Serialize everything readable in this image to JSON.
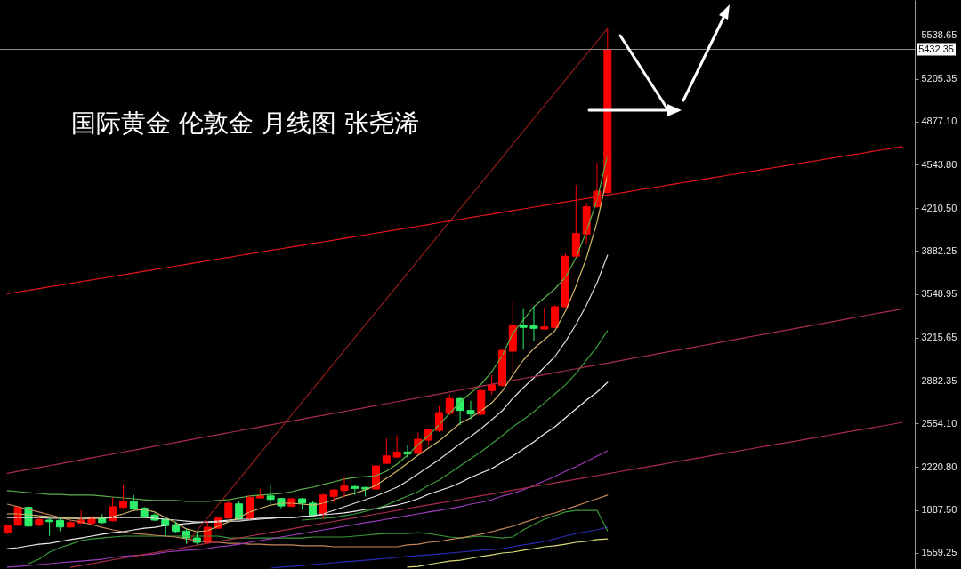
{
  "chart_data": {
    "type": "candlestick",
    "title": "国际黄金 伦敦金 月线图 张尧浠",
    "categories": [
      null,
      null,
      null,
      null,
      null,
      null,
      null,
      null,
      null,
      null,
      null,
      null,
      null,
      null,
      null,
      null,
      null,
      null,
      null,
      null,
      null,
      null,
      null,
      null,
      null,
      null,
      null,
      null,
      null,
      null,
      null,
      null,
      null,
      null,
      null,
      null,
      null,
      null,
      null,
      null,
      null,
      null,
      null,
      null,
      null,
      null,
      null,
      null,
      null,
      null,
      null,
      null,
      null,
      null,
      null,
      null,
      null,
      null,
      null,
      null,
      null,
      null,
      null,
      null,
      null,
      null,
      null,
      null,
      null,
      null,
      null,
      null,
      null,
      null,
      null,
      null,
      null,
      null,
      null,
      null,
      null,
      null,
      null,
      null,
      null,
      null
    ],
    "ohlc": [
      [
        1714,
        1780,
        1705,
        1773
      ],
      [
        1773,
        1919,
        1766,
        1910
      ],
      [
        1910,
        1919,
        1759,
        1766
      ],
      [
        1773,
        1835,
        1766,
        1817
      ],
      [
        1812,
        1835,
        1691,
        1800
      ],
      [
        1810,
        1835,
        1728,
        1759
      ],
      [
        1759,
        1805,
        1754,
        1793
      ],
      [
        1789,
        1887,
        1783,
        1812
      ],
      [
        1789,
        1846,
        1778,
        1828
      ],
      [
        1828,
        1858,
        1783,
        1793
      ],
      [
        1807,
        1987,
        1800,
        1915
      ],
      [
        1910,
        2085,
        1903,
        1954
      ],
      [
        1954,
        2005,
        1890,
        1896
      ],
      [
        1903,
        1915,
        1828,
        1841
      ],
      [
        1851,
        1865,
        1805,
        1812
      ],
      [
        1819,
        1835,
        1691,
        1771
      ],
      [
        1773,
        1800,
        1709,
        1725
      ],
      [
        1728,
        1744,
        1630,
        1675
      ],
      [
        1675,
        1728,
        1623,
        1641
      ],
      [
        1641,
        1805,
        1630,
        1757
      ],
      [
        1750,
        1835,
        1744,
        1828
      ],
      [
        1828,
        1956,
        1822,
        1942
      ],
      [
        1937,
        1960,
        1812,
        1823
      ],
      [
        1823,
        2005,
        1819,
        1988
      ],
      [
        1983,
        2051,
        1978,
        2001
      ],
      [
        1998,
        2085,
        1937,
        1971
      ],
      [
        1978,
        1983,
        1903,
        1921
      ],
      [
        1919,
        1983,
        1911,
        1976
      ],
      [
        1976,
        1983,
        1892,
        1942
      ],
      [
        1942,
        1956,
        1846,
        1851
      ],
      [
        1857,
        2017,
        1823,
        2005
      ],
      [
        1994,
        2051,
        1949,
        2044
      ],
      [
        2040,
        2142,
        1990,
        2074
      ],
      [
        2070,
        2079,
        2005,
        2056
      ],
      [
        2063,
        2070,
        1994,
        2051
      ],
      [
        2051,
        2234,
        2040,
        2229
      ],
      [
        2249,
        2439,
        2243,
        2306
      ],
      [
        2297,
        2466,
        2291,
        2336
      ],
      [
        2336,
        2393,
        2291,
        2320
      ],
      [
        2325,
        2484,
        2320,
        2434
      ],
      [
        2427,
        2518,
        2393,
        2507
      ],
      [
        2502,
        2689,
        2489,
        2639
      ],
      [
        2633,
        2781,
        2621,
        2747
      ],
      [
        2747,
        2762,
        2542,
        2655
      ],
      [
        2655,
        2730,
        2587,
        2628
      ],
      [
        2626,
        2815,
        2621,
        2808
      ],
      [
        2808,
        2929,
        2776,
        2853
      ],
      [
        2849,
        3127,
        2838,
        3118
      ],
      [
        3111,
        3499,
        2940,
        3310
      ],
      [
        3312,
        3441,
        3123,
        3294
      ],
      [
        3305,
        3453,
        3191,
        3287
      ],
      [
        3282,
        3446,
        3277,
        3298
      ],
      [
        3294,
        3465,
        3289,
        3453
      ],
      [
        3453,
        3863,
        3446,
        3841
      ],
      [
        3841,
        4388,
        3834,
        4016
      ],
      [
        4012,
        4251,
        3932,
        4221
      ],
      [
        4221,
        4559,
        4217,
        4342
      ],
      [
        4330,
        5595,
        4320,
        5432.35
      ],
      null,
      null,
      null,
      null,
      null,
      null,
      null,
      null,
      null,
      null,
      null,
      null,
      null,
      null,
      null,
      null,
      null,
      null,
      null,
      null,
      null,
      null,
      null,
      null,
      null,
      null,
      null,
      null
    ],
    "colors": [
      "#ff0000",
      "#ff0000",
      "#2ef06a",
      "#ff0000",
      "#2ef06a",
      "#2ef06a",
      "#ff0000",
      "#ff0000",
      "#ff0000",
      "#2ef06a",
      "#ff0000",
      "#ff0000",
      "#2ef06a",
      "#2ef06a",
      "#2ef06a",
      "#2ef06a",
      "#2ef06a",
      "#2ef06a",
      "#2ef06a",
      "#ff0000",
      "#ff0000",
      "#ff0000",
      "#2ef06a",
      "#ff0000",
      "#ff0000",
      "#2ef06a",
      "#2ef06a",
      "#ff0000",
      "#2ef06a",
      "#2ef06a",
      "#ff0000",
      "#ff0000",
      "#ff0000",
      "#2ef06a",
      "#2ef06a",
      "#ff0000",
      "#ff0000",
      "#ff0000",
      "#2ef06a",
      "#ff0000",
      "#ff0000",
      "#ff0000",
      "#ff0000",
      "#2ef06a",
      "#2ef06a",
      "#ff0000",
      "#ff0000",
      "#ff0000",
      "#ff0000",
      "#2ef06a",
      "#2ef06a",
      "#ff0000",
      "#ff0000",
      "#ff0000",
      "#ff0000",
      "#ff0000",
      "#ff0000",
      "#ff0000",
      null,
      null,
      null,
      null,
      null,
      null,
      null,
      null,
      null,
      null,
      null,
      null,
      null,
      null,
      null,
      null,
      null,
      null,
      null,
      null,
      null,
      null,
      null,
      null,
      null,
      null,
      null,
      null
    ],
    "series": [
      {
        "type": "line",
        "color": "#2a2ab0",
        "values": [
          null,
          null,
          null,
          null,
          null,
          null,
          null,
          null,
          null,
          null,
          null,
          null,
          null,
          null,
          null,
          null,
          null,
          null,
          null,
          null,
          null,
          null,
          null,
          null,
          null,
          1443,
          1450,
          1456,
          1463,
          1470,
          1477,
          1484,
          1491,
          1497,
          1504,
          1511,
          1518,
          1525,
          1532,
          1539,
          1545,
          1552,
          1559,
          1566,
          1573,
          1580,
          1586,
          1593,
          1607,
          1621,
          1634,
          1648,
          1668,
          1689,
          1709,
          1723,
          1737,
          1757,
          null,
          null,
          null,
          null,
          null,
          null,
          null,
          null,
          null,
          null,
          null,
          null,
          null,
          null,
          null,
          null,
          null,
          null,
          null,
          null,
          null,
          null,
          null,
          null,
          null,
          null,
          null,
          null
        ]
      },
      {
        "type": "line",
        "color": "#dcdc78",
        "values": [
          null,
          null,
          null,
          null,
          null,
          null,
          null,
          null,
          null,
          null,
          null,
          null,
          null,
          null,
          null,
          null,
          null,
          null,
          null,
          null,
          null,
          null,
          null,
          null,
          null,
          null,
          null,
          null,
          null,
          null,
          null,
          null,
          null,
          null,
          null,
          null,
          null,
          null,
          1450,
          1456,
          1470,
          1484,
          1497,
          1504,
          1518,
          1532,
          1545,
          1559,
          1566,
          1580,
          1593,
          1607,
          1614,
          1627,
          1641,
          1648,
          1662,
          1668,
          null,
          null,
          null,
          null,
          null,
          null,
          null,
          null,
          null,
          null,
          null,
          null,
          null,
          null,
          null,
          null,
          null,
          null,
          null,
          null,
          null,
          null,
          null,
          null,
          null,
          null,
          null,
          null
        ]
      },
      {
        "type": "line",
        "color": "#3a9a3a",
        "values": [
          null,
          null,
          1477,
          1511,
          1566,
          1600,
          1627,
          1655,
          1668,
          1675,
          1682,
          1689,
          1689,
          1689,
          1689,
          1689,
          1689,
          1689,
          1689,
          1689,
          1689,
          1675,
          1675,
          1675,
          1675,
          1675,
          1675,
          1675,
          1675,
          1682,
          1682,
          1682,
          1682,
          1689,
          1696,
          1703,
          1709,
          1709,
          1709,
          1716,
          1709,
          1696,
          1682,
          1675,
          1682,
          1689,
          1682,
          1675,
          1682,
          1737,
          1778,
          1819,
          1846,
          1874,
          1887,
          1887,
          1887,
          1730,
          null,
          null,
          null,
          null,
          null,
          null,
          null,
          null,
          null,
          null,
          null,
          null,
          null,
          null,
          null,
          null,
          null,
          null,
          null,
          null,
          null,
          null,
          null,
          null,
          null,
          null,
          null,
          null
        ]
      },
      {
        "type": "line",
        "color": "#c4875a",
        "values": [
          1935,
          1915,
          1894,
          1874,
          1853,
          1832,
          1812,
          1798,
          1778,
          1757,
          1737,
          1723,
          1709,
          1703,
          1696,
          1689,
          1682,
          1668,
          1655,
          1641,
          1641,
          1634,
          1634,
          1627,
          1627,
          1621,
          1621,
          1621,
          1614,
          1614,
          1614,
          1607,
          1607,
          1607,
          1607,
          1607,
          1607,
          1607,
          1621,
          1627,
          1641,
          1648,
          1662,
          1675,
          1689,
          1703,
          1723,
          1744,
          1764,
          1792,
          1819,
          1846,
          1867,
          1894,
          1921,
          1949,
          1976,
          2004,
          null,
          null,
          null,
          null,
          null,
          null,
          null,
          null,
          null,
          null,
          null,
          null,
          null,
          null,
          null,
          null,
          null,
          null,
          null,
          null,
          null,
          null,
          null,
          null,
          null,
          null,
          null,
          null
        ]
      },
      {
        "type": "line",
        "color": "#9c3cbc",
        "values": [
          1450,
          1456,
          1463,
          1470,
          1477,
          1484,
          1491,
          1497,
          1504,
          1511,
          1525,
          1532,
          1539,
          1545,
          1552,
          1566,
          1573,
          1580,
          1586,
          1593,
          1607,
          1614,
          1627,
          1641,
          1655,
          1668,
          1682,
          1696,
          1709,
          1723,
          1737,
          1750,
          1764,
          1778,
          1792,
          1805,
          1819,
          1832,
          1846,
          1860,
          1874,
          1887,
          1901,
          1915,
          1935,
          1949,
          1969,
          1997,
          2017,
          2045,
          2079,
          2113,
          2147,
          2188,
          2222,
          2263,
          2304,
          2345,
          null,
          null,
          null,
          null,
          null,
          null,
          null,
          null,
          null,
          null,
          null,
          null,
          null,
          null,
          null,
          null,
          null,
          null,
          null,
          null,
          null,
          null,
          null,
          null,
          null,
          null,
          null,
          null
        ]
      },
      {
        "type": "line",
        "color": "#f0f0f0",
        "values": [
          1593,
          1600,
          1614,
          1627,
          1634,
          1648,
          1662,
          1675,
          1689,
          1703,
          1716,
          1723,
          1737,
          1750,
          1757,
          1771,
          1778,
          1785,
          1792,
          1798,
          1805,
          1812,
          1819,
          1819,
          1826,
          1826,
          1832,
          1832,
          1839,
          1846,
          1853,
          1860,
          1867,
          1880,
          1894,
          1901,
          1915,
          1928,
          1949,
          1976,
          2010,
          2038,
          2065,
          2099,
          2140,
          2174,
          2209,
          2256,
          2304,
          2359,
          2414,
          2475,
          2530,
          2598,
          2667,
          2735,
          2797,
          2872,
          null,
          null,
          null,
          null,
          null,
          null,
          null,
          null,
          null,
          null,
          null,
          null,
          null,
          null,
          null,
          null,
          null,
          null,
          null,
          null,
          null,
          null,
          null,
          null,
          null,
          null,
          null,
          null
        ]
      },
      {
        "type": "line",
        "color": "#3c9c3c",
        "values": [
          null,
          null,
          null,
          null,
          null,
          null,
          null,
          null,
          null,
          null,
          null,
          null,
          null,
          null,
          null,
          null,
          null,
          null,
          null,
          null,
          null,
          null,
          null,
          null,
          null,
          null,
          null,
          null,
          1812,
          1819,
          1826,
          1832,
          1846,
          1860,
          1880,
          1901,
          1928,
          1963,
          1997,
          2031,
          2079,
          2120,
          2174,
          2229,
          2284,
          2338,
          2400,
          2462,
          2530,
          2585,
          2646,
          2714,
          2783,
          2852,
          2940,
          3043,
          3146,
          3269,
          null,
          null,
          null,
          null,
          null,
          null,
          null,
          null,
          null,
          null,
          null,
          null,
          null,
          null,
          null,
          null,
          null,
          null,
          null,
          null,
          null,
          null,
          null,
          null,
          null,
          null,
          null,
          null
        ]
      },
      {
        "type": "line",
        "color": "#dcdcdc",
        "values": [
          1832,
          1832,
          1832,
          1832,
          1826,
          1826,
          1826,
          1826,
          1826,
          1826,
          1832,
          1832,
          1832,
          1832,
          1826,
          1819,
          1812,
          1805,
          1798,
          1798,
          1798,
          1805,
          1805,
          1812,
          1819,
          1826,
          1832,
          1832,
          1839,
          1846,
          1860,
          1887,
          1915,
          1942,
          1969,
          1997,
          2031,
          2065,
          2113,
          2168,
          2222,
          2277,
          2338,
          2400,
          2455,
          2516,
          2585,
          2653,
          2749,
          2831,
          2906,
          2988,
          3070,
          3186,
          3316,
          3467,
          3638,
          3850,
          null,
          null,
          null,
          null,
          null,
          null,
          null,
          null,
          null,
          null,
          null,
          null,
          null,
          null,
          null,
          null,
          null,
          null,
          null,
          null,
          null,
          null,
          null,
          null,
          null,
          null,
          null,
          null
        ]
      },
      {
        "type": "line",
        "color": "#d2b86a",
        "values": [
          1860,
          1860,
          1853,
          1846,
          1839,
          1832,
          1826,
          1819,
          1826,
          1832,
          1839,
          1860,
          1887,
          1894,
          1874,
          1832,
          1792,
          1744,
          1723,
          1730,
          1764,
          1798,
          1832,
          1874,
          1901,
          1928,
          1942,
          1942,
          1935,
          1928,
          1942,
          1969,
          1997,
          2017,
          2045,
          2079,
          2134,
          2188,
          2250,
          2311,
          2366,
          2421,
          2489,
          2557,
          2598,
          2653,
          2714,
          2804,
          2927,
          3043,
          3132,
          3200,
          3269,
          3419,
          3610,
          3829,
          4103,
          4465,
          null,
          null,
          null,
          null,
          null,
          null,
          null,
          null,
          null,
          null,
          null,
          null,
          null,
          null,
          null,
          null,
          null,
          null,
          null,
          null,
          null,
          null,
          null,
          null,
          null,
          null,
          null,
          null
        ]
      },
      {
        "type": "line",
        "color": "#5cb04c",
        "values": [
          2038,
          2031,
          2024,
          2017,
          2010,
          2010,
          2004,
          2004,
          2004,
          1997,
          1990,
          1983,
          1976,
          1969,
          1963,
          1963,
          1963,
          1956,
          1956,
          1956,
          1963,
          1969,
          1983,
          1997,
          2004,
          2010,
          2017,
          2031,
          2051,
          2065,
          2086,
          2106,
          2127,
          2140,
          2147,
          2154,
          2188,
          2243,
          2311,
          2393,
          2462,
          2544,
          2633,
          2721,
          2790,
          2858,
          2954,
          3077,
          3248,
          3351,
          3453,
          3521,
          3590,
          3679,
          3829,
          4034,
          4274,
          4616,
          null,
          null,
          null,
          null,
          null,
          null,
          null,
          null,
          null,
          null,
          null,
          null,
          null,
          null,
          null,
          null,
          null,
          null,
          null,
          null,
          null,
          null,
          null,
          null,
          null,
          null,
          null,
          null
        ]
      },
      {
        "type": "line",
        "color": "#8e1c1c",
        "values": [
          null,
          null,
          null,
          null,
          null,
          null,
          null,
          null,
          null,
          null,
          null,
          null,
          null,
          null,
          null,
          null,
          null,
          1630,
          1729,
          1828,
          1927,
          2026,
          2125,
          2224,
          2324,
          2423,
          2522,
          2621,
          2720,
          2819,
          2918,
          3017,
          3117,
          3216,
          3315,
          3414,
          3513,
          3612,
          3711,
          3810,
          3910,
          4009,
          4108,
          4207,
          4306,
          4405,
          4504,
          4603,
          4703,
          4802,
          4901,
          5000,
          5099,
          5198,
          5297,
          5396,
          5494,
          5594,
          null,
          null,
          null,
          null,
          null,
          null,
          null,
          null,
          null,
          null,
          null,
          null,
          null,
          null,
          null,
          null,
          null,
          null,
          null,
          null,
          null,
          null,
          null,
          null,
          null,
          null,
          null,
          null
        ]
      },
      {
        "type": "line",
        "color": "#a82c48",
        "values": [
          null,
          null,
          null,
          null,
          null,
          null,
          1449,
          1463,
          1477,
          1492,
          1506,
          1520,
          1534,
          1548,
          1562,
          1576,
          1590,
          1604,
          1619,
          1633,
          1647,
          1661,
          1675,
          1689,
          1703,
          1717,
          1731,
          1745,
          1760,
          1774,
          1788,
          1802,
          1816,
          1830,
          1844,
          1858,
          1872,
          1886,
          1901,
          1915,
          1929,
          1943,
          1957,
          1971,
          1985,
          1999,
          2013,
          2027,
          2042,
          2056,
          2070,
          2084,
          2098,
          2112,
          2126,
          2140,
          2154,
          2168,
          2183,
          2197,
          2211,
          2225,
          2239,
          2253,
          2267,
          2281,
          2295,
          2310,
          2324,
          2338,
          2352,
          2366,
          2380,
          2394,
          2408,
          2422,
          2437,
          2451,
          2465,
          2479,
          2493,
          2507,
          2521,
          2535,
          2549,
          2564
        ]
      },
      {
        "type": "line",
        "color": "#a82c48",
        "values": [
          2172,
          2187,
          2201,
          2216,
          2231,
          2246,
          2261,
          2276,
          2291,
          2306,
          2321,
          2335,
          2350,
          2365,
          2380,
          2395,
          2410,
          2425,
          2440,
          2455,
          2469,
          2484,
          2499,
          2514,
          2529,
          2544,
          2559,
          2574,
          2589,
          2604,
          2618,
          2633,
          2648,
          2663,
          2678,
          2693,
          2708,
          2723,
          2738,
          2752,
          2767,
          2782,
          2797,
          2812,
          2827,
          2842,
          2857,
          2871,
          2886,
          2901,
          2916,
          2931,
          2946,
          2961,
          2976,
          2991,
          3005,
          3020,
          3035,
          3050,
          3065,
          3080,
          3095,
          3110,
          3125,
          3140,
          3154,
          3169,
          3184,
          3199,
          3214,
          3229,
          3244,
          3259,
          3273,
          3288,
          3303,
          3318,
          3333,
          3348,
          3363,
          3378,
          3393,
          3408,
          3422,
          3437
        ]
      },
      {
        "type": "line",
        "color": "#e4161c",
        "values": [
          3553,
          3566,
          3579,
          3592,
          3606,
          3619,
          3632,
          3646,
          3659,
          3672,
          3686,
          3699,
          3712,
          3726,
          3739,
          3752,
          3766,
          3779,
          3792,
          3806,
          3819,
          3832,
          3846,
          3859,
          3872,
          3886,
          3899,
          3912,
          3926,
          3939,
          3952,
          3965,
          3979,
          3992,
          4005,
          4019,
          4032,
          4045,
          4059,
          4072,
          4085,
          4099,
          4112,
          4125,
          4139,
          4152,
          4165,
          4179,
          4192,
          4205,
          4219,
          4232,
          4245,
          4259,
          4272,
          4285,
          4298,
          4312,
          4325,
          4338,
          4352,
          4365,
          4378,
          4392,
          4405,
          4418,
          4432,
          4445,
          4458,
          4472,
          4485,
          4498,
          4512,
          4525,
          4538,
          4552,
          4565,
          4578,
          4592,
          4605,
          4618,
          4631,
          4645,
          4658,
          4671,
          4685
        ]
      }
    ],
    "ylim": [
      1436,
      5812
    ],
    "yticks": [
      1559.25,
      {
        "value": 1887.5,
        "label": "1887.50"
      },
      {
        "value": 2220.8,
        "label": "2220.80"
      },
      {
        "value": 2554.1,
        "label": "2554.10"
      },
      2882.35,
      3215.65,
      3548.95,
      3882.25,
      {
        "value": 4210.5,
        "label": "4210.50"
      },
      {
        "value": 4543.8,
        "label": "4543.80"
      },
      {
        "value": 4877.1,
        "label": "4877.10"
      },
      5205.35,
      5538.65
    ],
    "ref_lines": [
      {
        "axis": "y",
        "value": 5432.35,
        "label": "5432.35",
        "color": "#8c8c8c"
      }
    ],
    "tick_labels": "y"
  }
}
